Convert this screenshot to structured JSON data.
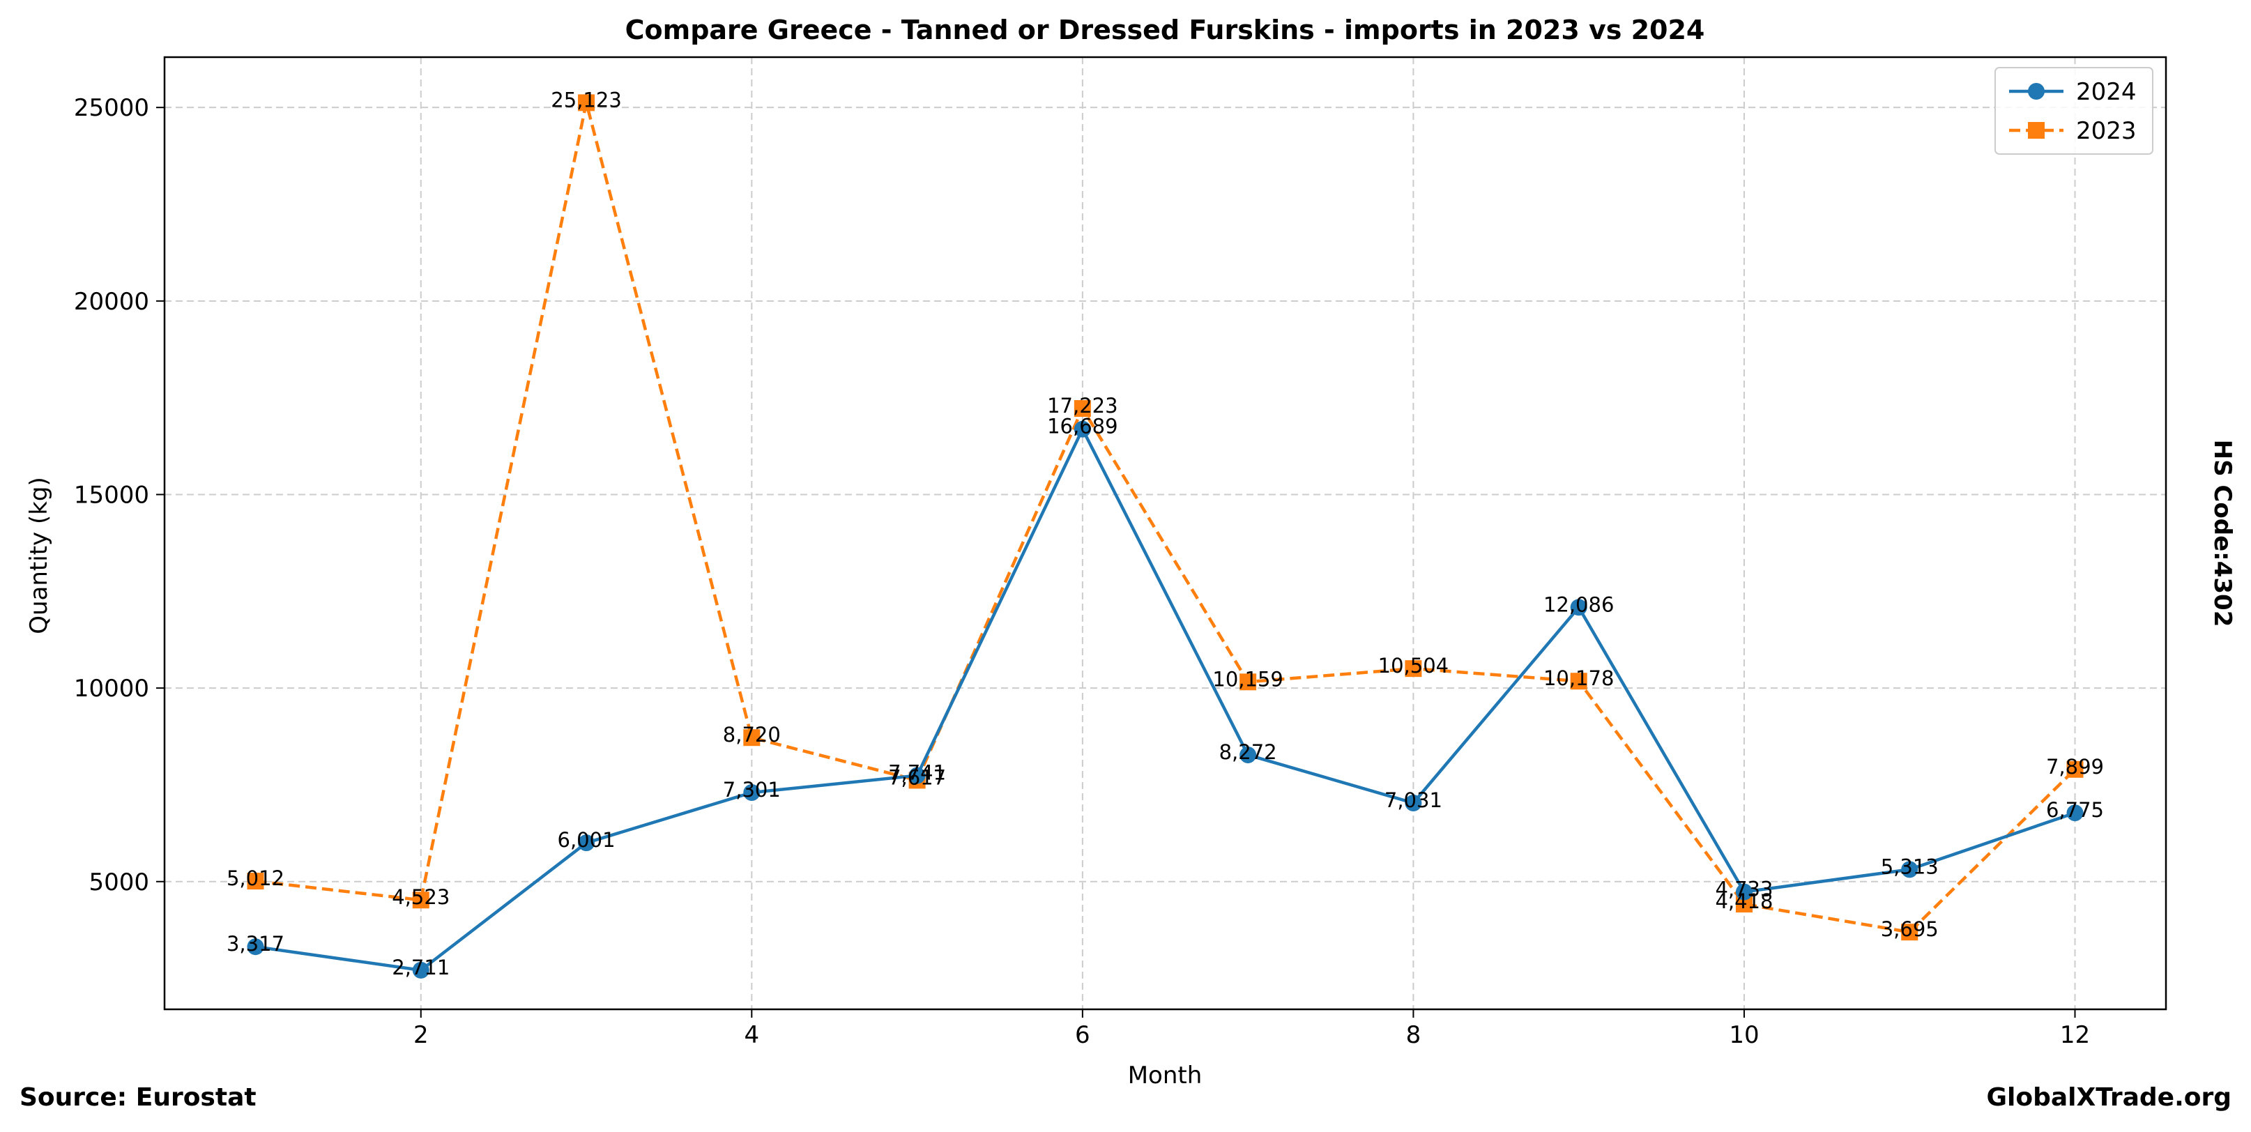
{
  "footer": {
    "source": "Source: Eurostat",
    "site": "GlobalXTrade.org"
  },
  "side_label": "HS Code:4302",
  "colors": {
    "series_2024": "#1f77b4",
    "series_2023": "#ff7f0e",
    "grid": "#cccccc"
  },
  "chart_data": {
    "type": "line",
    "title": "Compare Greece - Tanned or Dressed Furskins - imports in 2023 vs 2024",
    "xlabel": "Month",
    "ylabel": "Quantity (kg)",
    "x": [
      1,
      2,
      3,
      4,
      5,
      6,
      7,
      8,
      9,
      10,
      11,
      12
    ],
    "xlim": [
      0.45,
      12.55
    ],
    "ylim": [
      1700,
      26300
    ],
    "xticks": [
      2,
      4,
      6,
      8,
      10,
      12
    ],
    "yticks": [
      5000,
      10000,
      15000,
      20000,
      25000
    ],
    "grid": true,
    "legend_position": "top-right",
    "series": [
      {
        "name": "2024",
        "color": "#1f77b4",
        "marker": "circle",
        "line_style": "solid",
        "values": [
          3317,
          2711,
          6001,
          7301,
          7741,
          16689,
          8272,
          7031,
          12086,
          4733,
          5313,
          6775
        ],
        "labels": [
          "3,317",
          "2,711",
          "6,001",
          "7,301",
          "7,741",
          "16,689",
          "8,272",
          "7,031",
          "12,086",
          "4,733",
          "5,313",
          "6,775"
        ]
      },
      {
        "name": "2023",
        "color": "#ff7f0e",
        "marker": "square",
        "line_style": "dashed",
        "values": [
          5012,
          4523,
          25123,
          8720,
          7617,
          17223,
          10159,
          10504,
          10178,
          4418,
          3695,
          7899
        ],
        "labels": [
          "5,012",
          "4,523",
          "25,123",
          "8,720",
          "7,617",
          "17,223",
          "10,159",
          "10,504",
          "10,178",
          "4,418",
          "3,695",
          "7,899"
        ]
      }
    ]
  }
}
